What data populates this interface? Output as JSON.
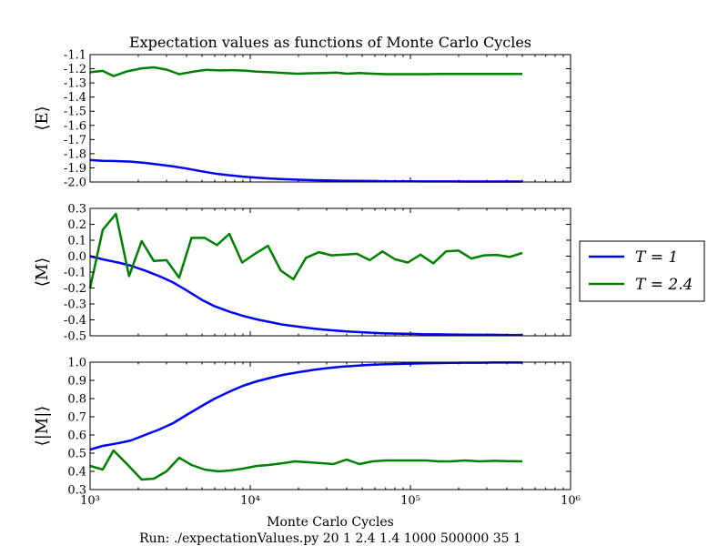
{
  "figure": {
    "title": "Expectation values as functions of Monte Carlo Cycles",
    "xlabel": "Monte Carlo Cycles",
    "footer": "Run: ./expectationValues.py 20 1 2.4 1.4 1000 500000 35 1"
  },
  "legend": {
    "placement": "right",
    "items": [
      {
        "label": "T = 1",
        "color": "#0000ff"
      },
      {
        "label": "T = 2.4",
        "color": "#008000"
      }
    ]
  },
  "colors": {
    "t1": "#0000ff",
    "t24": "#008000"
  },
  "chart_data": [
    {
      "type": "line",
      "title": "Expectation values as functions of Monte Carlo Cycles",
      "ylabel": "⟨E⟩",
      "xlabel": "",
      "xscale": "log",
      "xlim": [
        1000,
        1000000
      ],
      "ylim": [
        -2.0,
        -1.1
      ],
      "yticks": [
        -1.1,
        -1.2,
        -1.3,
        -1.4,
        -1.5,
        -1.6,
        -1.7,
        -1.8,
        -1.9,
        -2.0
      ],
      "ytick_labels": [
        "-1.1",
        "-1.2",
        "-1.3",
        "-1.4",
        "-1.5",
        "-1.6",
        "-1.7",
        "-1.8",
        "-1.9",
        "-2.0"
      ],
      "xtick_labels": [],
      "grid": false,
      "series": [
        {
          "name": "T = 1",
          "color": "#0000ff",
          "x": [
            1000,
            1200,
            1500,
            1800,
            2200,
            2700,
            3300,
            4000,
            5000,
            6000,
            7500,
            9000,
            11000,
            13500,
            16000,
            20000,
            25000,
            30000,
            37000,
            45000,
            55000,
            67000,
            82000,
            100000,
            120000,
            150000,
            180000,
            220000,
            270000,
            330000,
            400000,
            500000
          ],
          "y": [
            -1.845,
            -1.85,
            -1.853,
            -1.856,
            -1.865,
            -1.877,
            -1.89,
            -1.905,
            -1.925,
            -1.94,
            -1.953,
            -1.962,
            -1.97,
            -1.976,
            -1.98,
            -1.984,
            -1.987,
            -1.989,
            -1.991,
            -1.992,
            -1.993,
            -1.994,
            -1.995,
            -1.995,
            -1.996,
            -1.996,
            -1.996,
            -1.997,
            -1.997,
            -1.997,
            -1.997,
            -1.997
          ]
        },
        {
          "name": "T = 2.4",
          "color": "#008000",
          "x": [
            1000,
            1200,
            1400,
            1700,
            2100,
            2500,
            3000,
            3600,
            4400,
            5300,
            6400,
            7700,
            9300,
            11000,
            13500,
            16300,
            19700,
            23800,
            28700,
            34600,
            40000,
            48000,
            58000,
            70000,
            85000,
            100000,
            125000,
            150000,
            180000,
            220000,
            270000,
            330000,
            400000,
            500000
          ],
          "y": [
            -1.225,
            -1.215,
            -1.252,
            -1.218,
            -1.197,
            -1.19,
            -1.206,
            -1.238,
            -1.221,
            -1.208,
            -1.212,
            -1.21,
            -1.213,
            -1.22,
            -1.225,
            -1.23,
            -1.235,
            -1.232,
            -1.23,
            -1.227,
            -1.235,
            -1.23,
            -1.235,
            -1.238,
            -1.238,
            -1.238,
            -1.238,
            -1.236,
            -1.236,
            -1.237,
            -1.236,
            -1.237,
            -1.237,
            -1.237
          ]
        }
      ]
    },
    {
      "type": "line",
      "ylabel": "⟨M⟩",
      "xlabel": "",
      "xscale": "log",
      "xlim": [
        1000,
        1000000
      ],
      "ylim": [
        -0.5,
        0.3
      ],
      "yticks": [
        0.3,
        0.2,
        0.1,
        0.0,
        -0.1,
        -0.2,
        -0.3,
        -0.4,
        -0.5
      ],
      "ytick_labels": [
        "0.3",
        "0.2",
        "0.1",
        "0.0",
        "-0.1",
        "-0.2",
        "-0.3",
        "-0.4",
        "-0.5"
      ],
      "xtick_labels": [],
      "grid": false,
      "series": [
        {
          "name": "T = 1",
          "color": "#0000ff",
          "x": [
            1000,
            1200,
            1500,
            1800,
            2200,
            2700,
            3300,
            4000,
            5000,
            6000,
            7500,
            9000,
            11000,
            13500,
            16000,
            20000,
            25000,
            30000,
            37000,
            45000,
            55000,
            67000,
            82000,
            100000,
            120000,
            150000,
            180000,
            220000,
            270000,
            330000,
            400000,
            500000
          ],
          "y": [
            0.0,
            -0.02,
            -0.04,
            -0.06,
            -0.09,
            -0.125,
            -0.165,
            -0.215,
            -0.275,
            -0.315,
            -0.35,
            -0.375,
            -0.397,
            -0.415,
            -0.43,
            -0.443,
            -0.455,
            -0.463,
            -0.47,
            -0.476,
            -0.48,
            -0.484,
            -0.486,
            -0.488,
            -0.49,
            -0.491,
            -0.492,
            -0.493,
            -0.494,
            -0.494,
            -0.495,
            -0.495
          ]
        },
        {
          "name": "T = 2.4",
          "color": "#008000",
          "x": [
            1000,
            1200,
            1450,
            1750,
            2100,
            2500,
            3000,
            3600,
            4300,
            5200,
            6200,
            7400,
            8900,
            10700,
            12900,
            15500,
            18600,
            22300,
            26800,
            32200,
            38700,
            46400,
            55700,
            66900,
            80300,
            96400,
            115700,
            138900,
            166700,
            200100,
            240100,
            288200,
            346000,
            415300,
            500000
          ],
          "y": [
            -0.2,
            0.165,
            0.265,
            -0.125,
            0.095,
            -0.03,
            -0.025,
            -0.135,
            0.115,
            0.115,
            0.07,
            0.14,
            -0.04,
            0.015,
            0.065,
            -0.09,
            -0.145,
            -0.01,
            0.025,
            0.005,
            0.01,
            0.015,
            -0.025,
            0.03,
            -0.02,
            -0.04,
            0.01,
            -0.045,
            0.03,
            0.035,
            -0.015,
            0.005,
            0.008,
            -0.005,
            0.02
          ]
        }
      ]
    },
    {
      "type": "line",
      "ylabel": "⟨|M|⟩",
      "xlabel": "Monte Carlo Cycles",
      "xscale": "log",
      "xlim": [
        1000,
        1000000
      ],
      "ylim": [
        0.3,
        1.0
      ],
      "yticks": [
        1.0,
        0.9,
        0.8,
        0.7,
        0.6,
        0.5,
        0.4,
        0.3
      ],
      "ytick_labels": [
        "1.0",
        "0.9",
        "0.8",
        "0.7",
        "0.6",
        "0.5",
        "0.4",
        "0.3"
      ],
      "xticks": [
        1000,
        10000,
        100000,
        1000000
      ],
      "xtick_labels": [
        "10³",
        "10⁴",
        "10⁵",
        "10⁶"
      ],
      "grid": false,
      "series": [
        {
          "name": "T = 1",
          "color": "#0000ff",
          "x": [
            1000,
            1200,
            1500,
            1800,
            2200,
            2700,
            3300,
            4000,
            5000,
            6000,
            7500,
            9000,
            11000,
            13500,
            16000,
            20000,
            25000,
            30000,
            37000,
            45000,
            55000,
            67000,
            82000,
            100000,
            120000,
            150000,
            180000,
            220000,
            270000,
            330000,
            400000,
            500000
          ],
          "y": [
            0.52,
            0.54,
            0.555,
            0.57,
            0.6,
            0.63,
            0.665,
            0.71,
            0.76,
            0.8,
            0.84,
            0.87,
            0.895,
            0.915,
            0.93,
            0.945,
            0.958,
            0.967,
            0.975,
            0.98,
            0.985,
            0.988,
            0.99,
            0.992,
            0.994,
            0.995,
            0.996,
            0.997,
            0.997,
            0.998,
            0.998,
            0.998
          ]
        },
        {
          "name": "T = 2.4",
          "color": "#008000",
          "x": [
            1000,
            1200,
            1400,
            1700,
            2100,
            2500,
            3000,
            3600,
            4300,
            5200,
            6300,
            7500,
            9000,
            11000,
            13000,
            16000,
            19000,
            23000,
            28000,
            33000,
            40000,
            48000,
            58000,
            70000,
            85000,
            100000,
            125000,
            150000,
            180000,
            220000,
            270000,
            330000,
            400000,
            500000
          ],
          "y": [
            0.43,
            0.41,
            0.515,
            0.44,
            0.355,
            0.36,
            0.4,
            0.475,
            0.435,
            0.41,
            0.4,
            0.405,
            0.415,
            0.43,
            0.435,
            0.445,
            0.455,
            0.45,
            0.445,
            0.44,
            0.465,
            0.44,
            0.455,
            0.46,
            0.46,
            0.46,
            0.46,
            0.455,
            0.455,
            0.46,
            0.455,
            0.458,
            0.456,
            0.455
          ]
        }
      ]
    }
  ]
}
